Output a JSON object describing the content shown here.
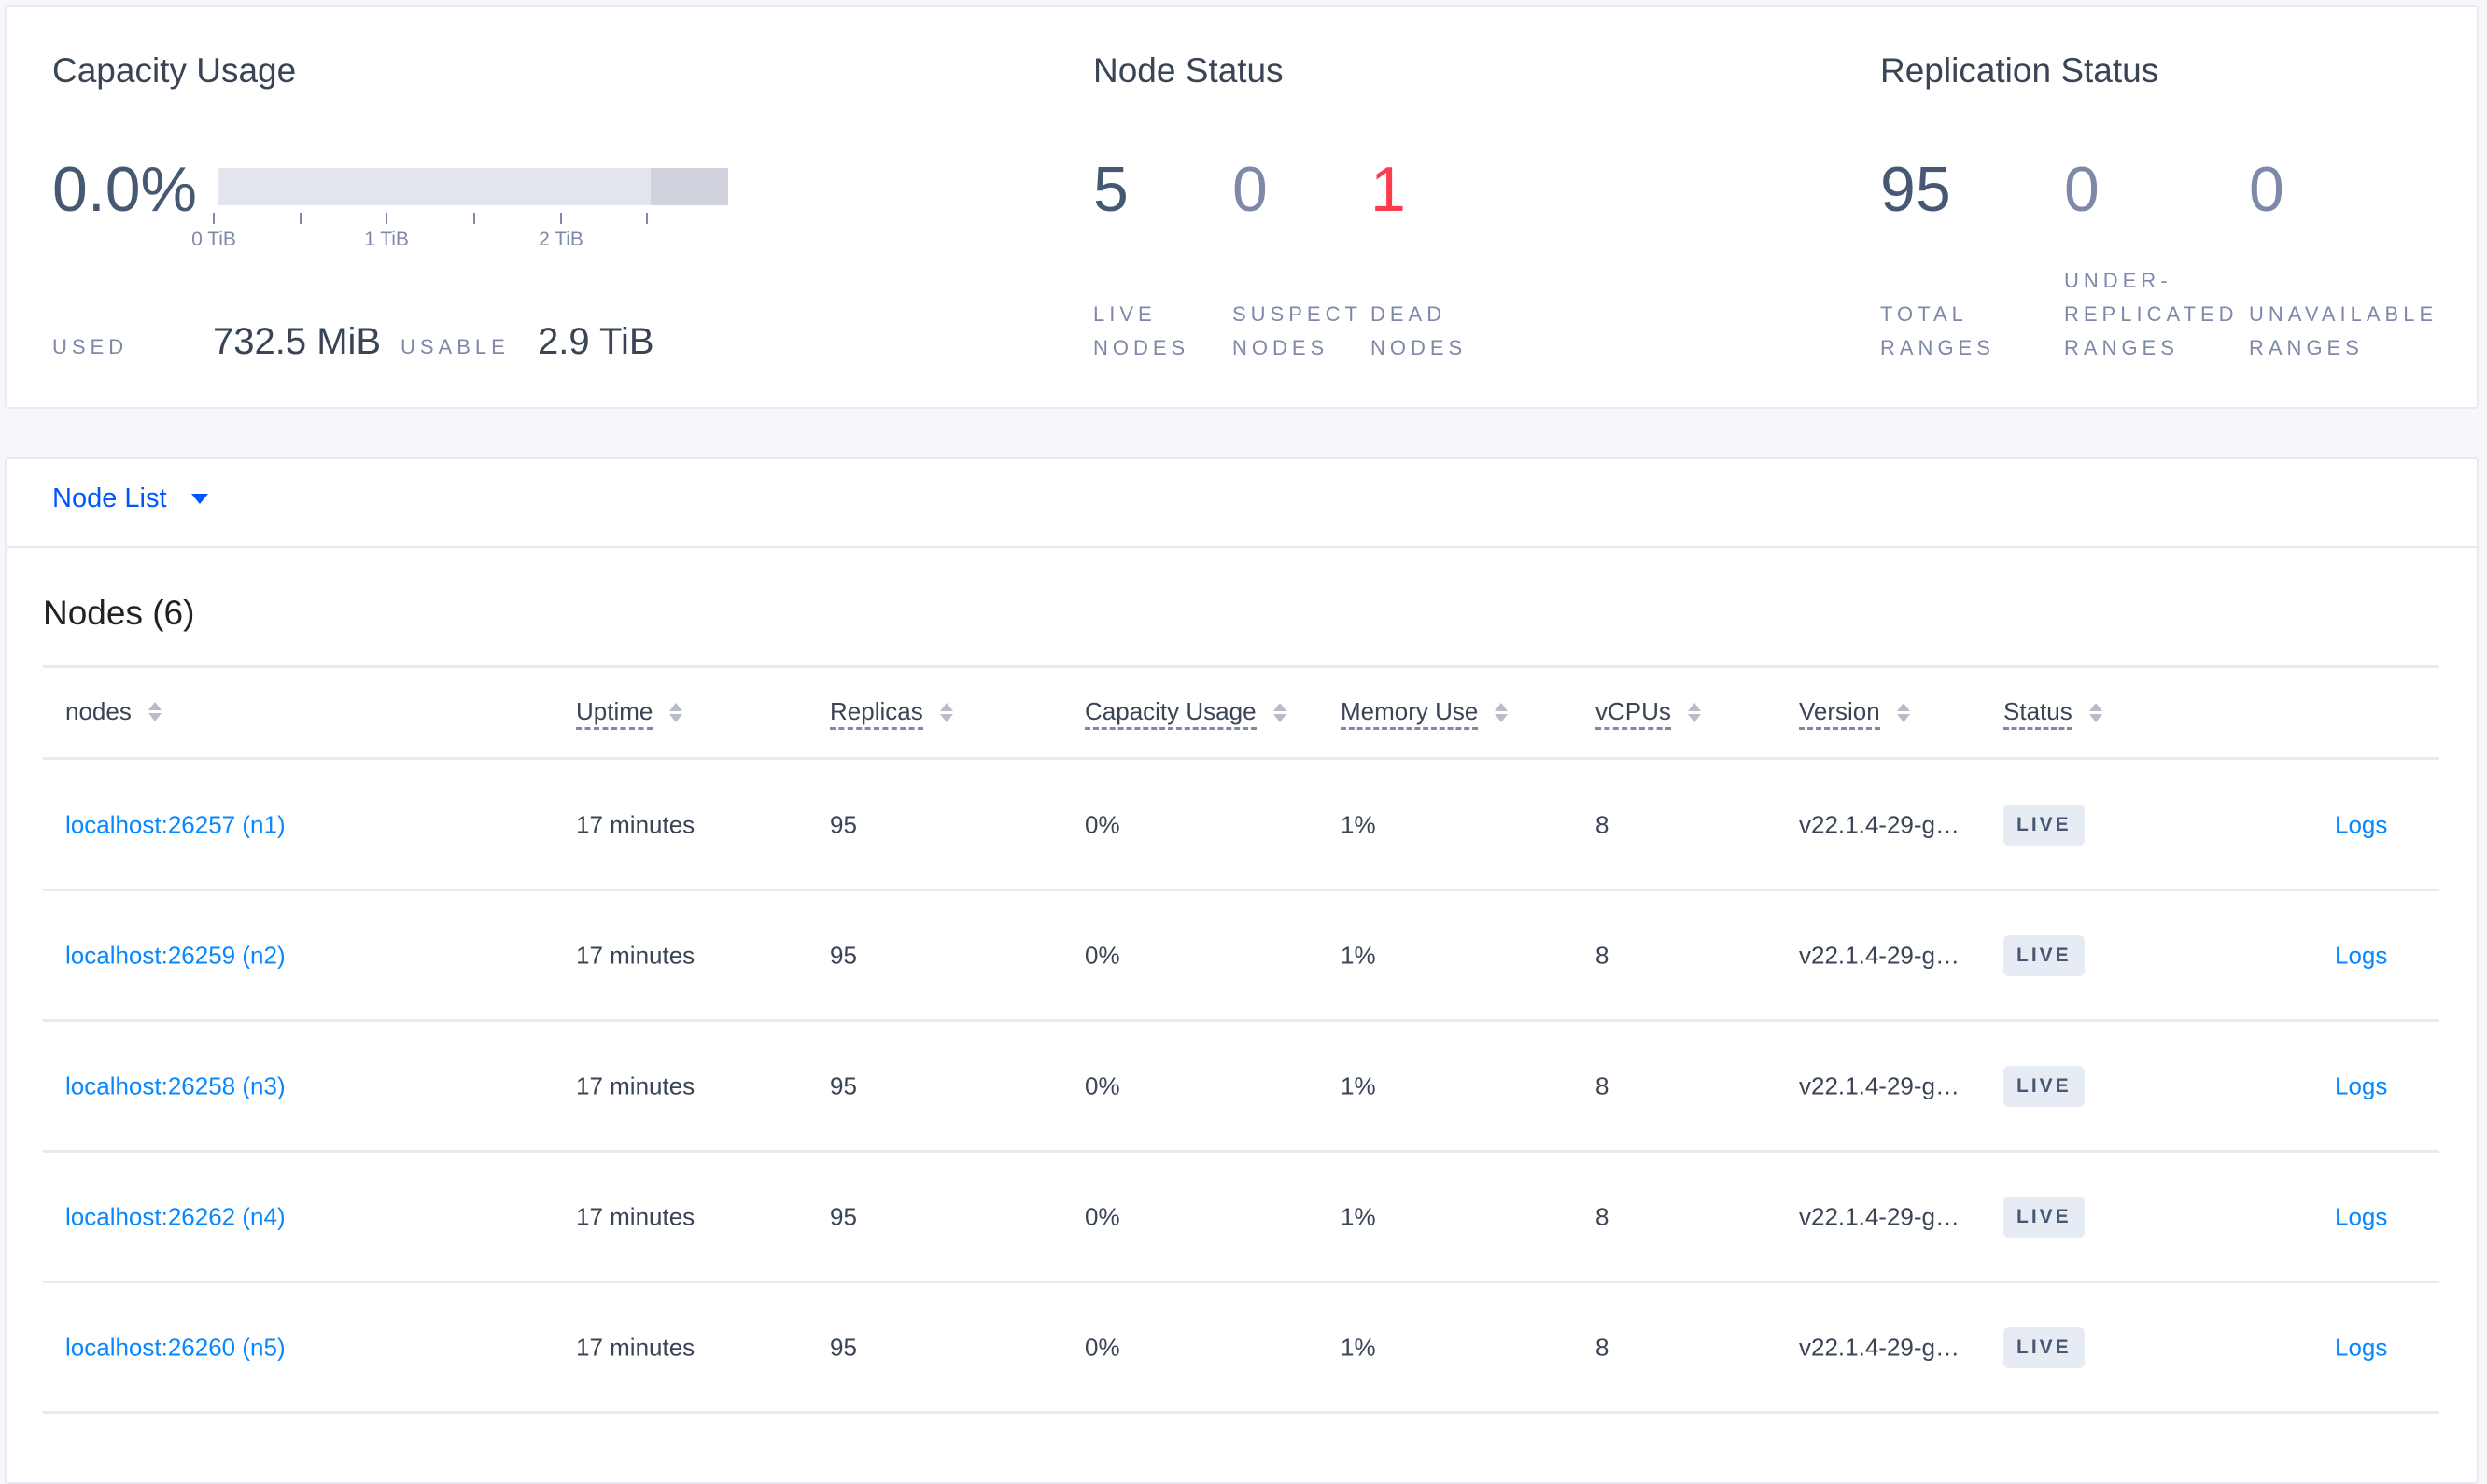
{
  "capacity": {
    "title": "Capacity Usage",
    "percent": "0.0%",
    "used_fraction": 0.0,
    "ticks": [
      "0 TiB",
      "1 TiB",
      "2 TiB"
    ],
    "used_label": "USED",
    "used_value": "732.5 MiB",
    "usable_label": "USABLE",
    "usable_value": "2.9 TiB"
  },
  "node_status": {
    "title": "Node Status",
    "live": "5",
    "live_label1": "LIVE",
    "live_label2": "NODES",
    "suspect": "0",
    "suspect_label1": "SUSPECT",
    "suspect_label2": "NODES",
    "dead": "1",
    "dead_label1": "DEAD",
    "dead_label2": "NODES",
    "dead_color": "#ff3b4e"
  },
  "replication": {
    "title": "Replication Status",
    "total": "95",
    "total_label1": "TOTAL",
    "total_label2": "RANGES",
    "under": "0",
    "under_label1": "UNDER-",
    "under_label2": "REPLICATED",
    "under_label3": "RANGES",
    "unavailable": "0",
    "unavailable_label1": "UNAVAILABLE",
    "unavailable_label2": "RANGES"
  },
  "view_selector": {
    "label": "Node List"
  },
  "nodes_title": "Nodes (6)",
  "table": {
    "columns": [
      "nodes",
      "Uptime",
      "Replicas",
      "Capacity Usage",
      "Memory Use",
      "vCPUs",
      "Version",
      "Status"
    ],
    "rows": [
      {
        "node": "localhost:26257 (n1)",
        "uptime": "17 minutes",
        "replicas": "95",
        "capacity": "0%",
        "memory": "1%",
        "vcpus": "8",
        "version": "v22.1.4-29-g…",
        "status": "LIVE",
        "logs": "Logs"
      },
      {
        "node": "localhost:26259 (n2)",
        "uptime": "17 minutes",
        "replicas": "95",
        "capacity": "0%",
        "memory": "1%",
        "vcpus": "8",
        "version": "v22.1.4-29-g…",
        "status": "LIVE",
        "logs": "Logs"
      },
      {
        "node": "localhost:26258 (n3)",
        "uptime": "17 minutes",
        "replicas": "95",
        "capacity": "0%",
        "memory": "1%",
        "vcpus": "8",
        "version": "v22.1.4-29-g…",
        "status": "LIVE",
        "logs": "Logs"
      },
      {
        "node": "localhost:26262 (n4)",
        "uptime": "17 minutes",
        "replicas": "95",
        "capacity": "0%",
        "memory": "1%",
        "vcpus": "8",
        "version": "v22.1.4-29-g…",
        "status": "LIVE",
        "logs": "Logs"
      },
      {
        "node": "localhost:26260 (n5)",
        "uptime": "17 minutes",
        "replicas": "95",
        "capacity": "0%",
        "memory": "1%",
        "vcpus": "8",
        "version": "v22.1.4-29-g…",
        "status": "LIVE",
        "logs": "Logs"
      }
    ]
  },
  "colors": {
    "link": "#0788ff",
    "accent": "#0055ff",
    "text": "#394455",
    "muted": "#7e89a9"
  }
}
